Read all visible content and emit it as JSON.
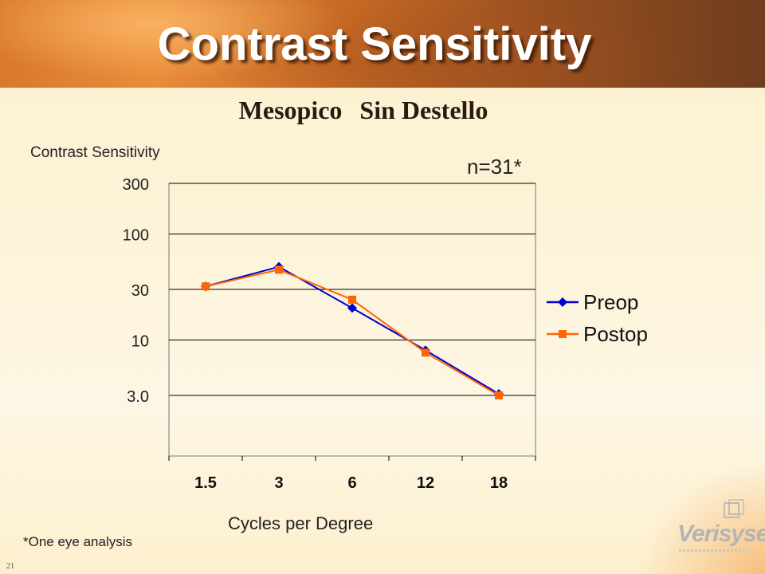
{
  "slide": {
    "title": "Contrast Sensitivity",
    "subtitle_left": "Mesopico",
    "subtitle_right": "Sin Destello",
    "footnote": "*One eye analysis",
    "page_number": "21",
    "logo_text": "Verisyse"
  },
  "chart_data": {
    "type": "line",
    "title": "",
    "annotation": "n=31*",
    "ylabel": "Contrast Sensitivity",
    "xlabel": "Cycles per Degree",
    "categories": [
      "1.5",
      "3",
      "6",
      "12",
      "18"
    ],
    "y_scale": "log",
    "ylim": [
      1,
      300
    ],
    "y_ticks": [
      {
        "value": 300,
        "label": "300"
      },
      {
        "value": 100,
        "label": "100"
      },
      {
        "value": 30,
        "label": "30"
      },
      {
        "value": 10,
        "label": "10"
      },
      {
        "value": 3,
        "label": "3.0"
      }
    ],
    "grid": true,
    "legend_position": "right",
    "series": [
      {
        "name": "Preop",
        "color": "#0000cc",
        "marker": "diamond",
        "values": [
          32,
          49,
          20,
          8,
          3.1
        ]
      },
      {
        "name": "Postop",
        "color": "#ff6600",
        "marker": "square",
        "values": [
          32,
          46,
          24,
          7.6,
          3.0
        ]
      }
    ]
  }
}
